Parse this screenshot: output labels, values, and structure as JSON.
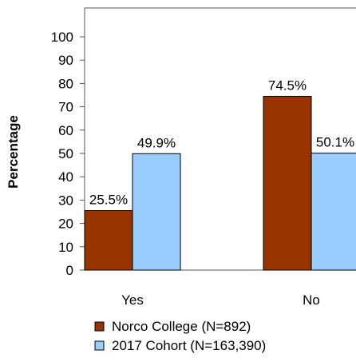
{
  "chart_data": {
    "type": "bar",
    "categories": [
      "Yes",
      "No"
    ],
    "series": [
      {
        "name": "Norco College (N=892)",
        "values": [
          25.5,
          74.5
        ],
        "labels": [
          "25.5%",
          "74.5%"
        ],
        "color": "#993300"
      },
      {
        "name": "2017 Cohort (N=163,390)",
        "values": [
          49.9,
          50.1
        ],
        "labels": [
          "49.9%",
          "50.1%"
        ],
        "color": "#99ccff"
      }
    ],
    "ylabel": "Percentage",
    "xlabel": "",
    "ylim": [
      0,
      100
    ],
    "yticks": [
      0,
      10,
      20,
      30,
      40,
      50,
      60,
      70,
      80,
      90,
      100
    ],
    "grid": false,
    "legend_position": "bottom"
  }
}
